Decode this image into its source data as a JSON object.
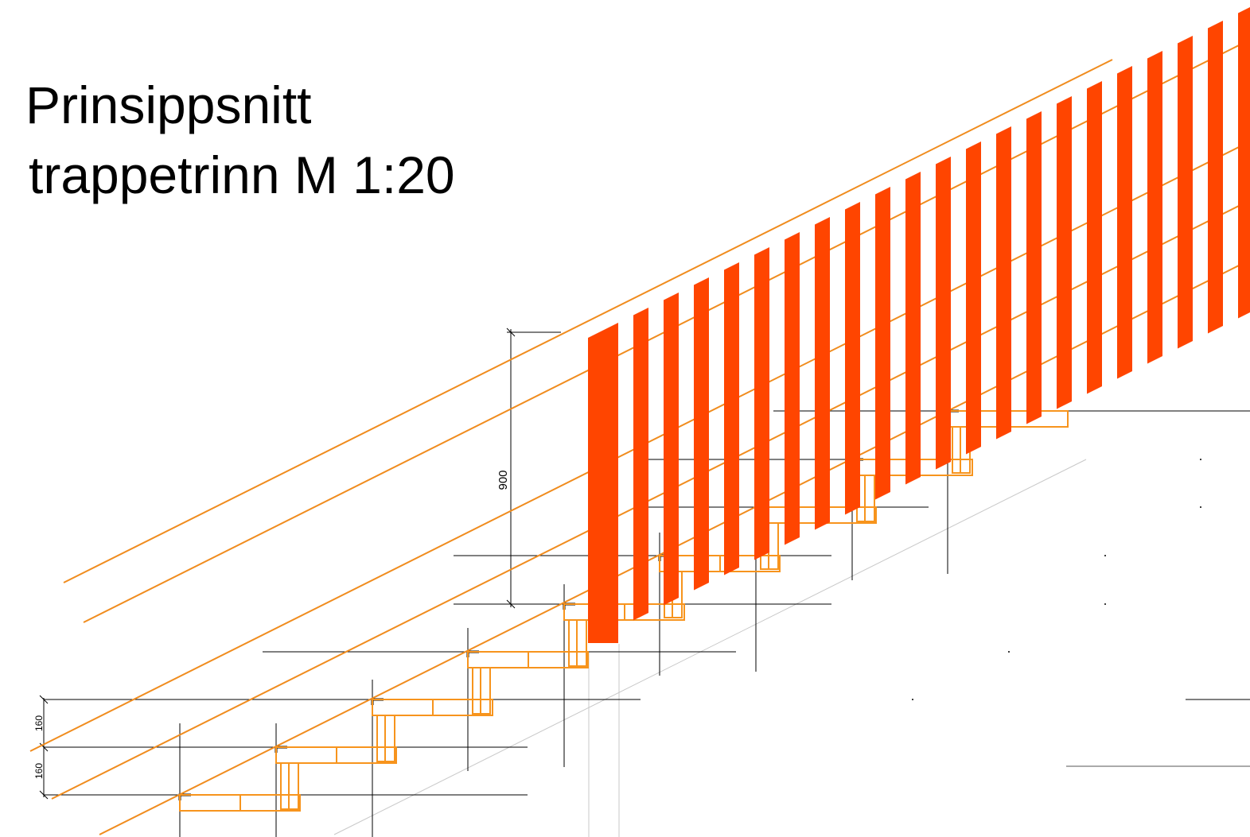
{
  "title": {
    "line1": "Prinsippsnitt",
    "line2": "trappetrinn M 1:20"
  },
  "dimensions": {
    "railing_height": "900",
    "step_rise_upper": "160",
    "step_rise_lower": "160"
  },
  "colors": {
    "baluster": "#ff4500",
    "stair_outline": "#f7941d",
    "handrail_line": "#f08c1e",
    "construction_line": "#000000",
    "guide_line": "#c8c8c8"
  }
}
